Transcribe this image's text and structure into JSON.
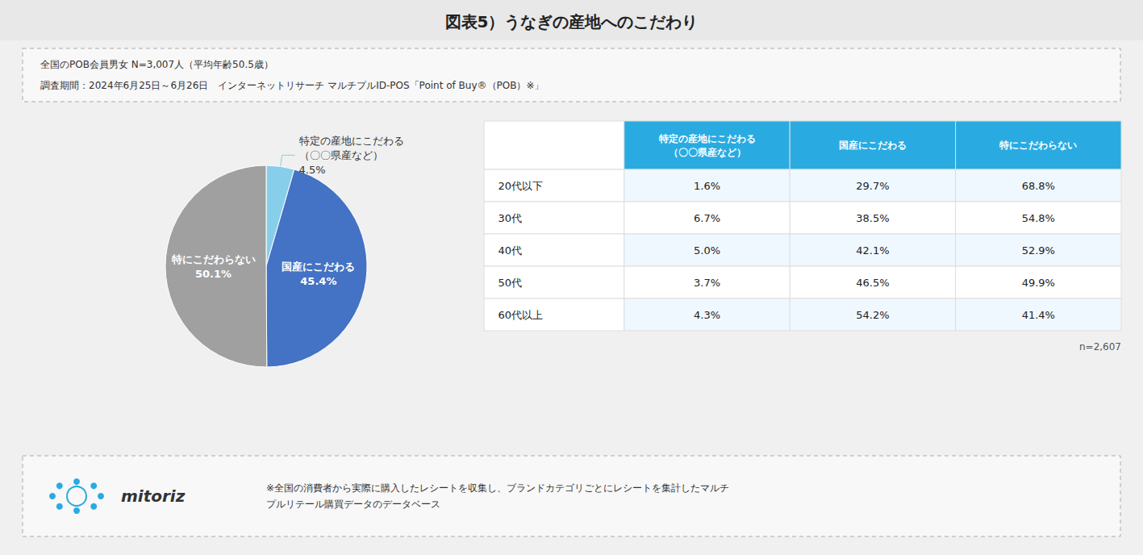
{
  "chart_data": {
    "type": "pie",
    "title": "図表5）うなぎの産地へのこだわり",
    "subtitle": "全国のPOB会員男女 N=3,007人（平均年齢50.5歳）\n調査期間：2024年6月25日～6月26日　インターネットリサーチ マルチプルID-POS「Point of Buy®（POB）※」",
    "categories": [
      "特定の産地にこだわる\n（〇〇県産など）",
      "国産にこだわる",
      "特にこだわらない"
    ],
    "values": [
      4.5,
      45.4,
      50.1
    ],
    "value_labels": [
      "4.5%",
      "45.4%",
      "50.1%"
    ],
    "colors": [
      "#87ceeb",
      "#4472c4",
      "#a0a0a0"
    ],
    "data_labels": true,
    "legend": false,
    "table": {
      "columns": [
        "特定の産地にこだわる\n（〇〇県産など）",
        "国産にこだわる",
        "特にこだわらない"
      ],
      "rows": [
        "20代以下",
        "30代",
        "40代",
        "50代",
        "60代以上"
      ],
      "cells": [
        [
          "1.6%",
          "29.7%",
          "68.8%"
        ],
        [
          "6.7%",
          "38.5%",
          "54.8%"
        ],
        [
          "5.0%",
          "42.1%",
          "52.9%"
        ],
        [
          "3.7%",
          "46.5%",
          "49.9%"
        ],
        [
          "4.3%",
          "54.2%",
          "41.4%"
        ]
      ]
    },
    "annotations": [
      "n=2,607",
      "※全国の消費者から実際に購入したレシートを収集し、ブランドカテゴリごとにレシートを集計したマルチ\nプルリテール購買データのデータベース",
      "mitoriz"
    ]
  }
}
